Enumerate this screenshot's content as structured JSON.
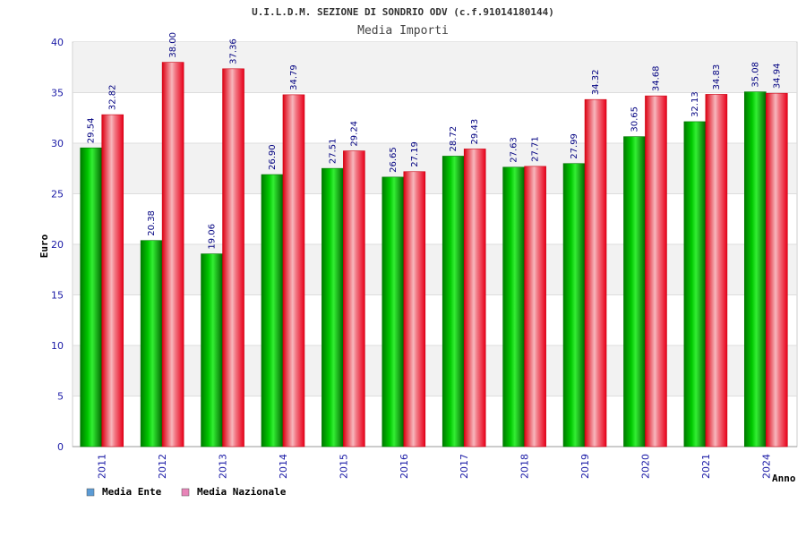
{
  "chart_data": {
    "type": "bar",
    "title": "U.I.L.D.M. SEZIONE DI SONDRIO ODV (c.f.91014180144)",
    "subtitle": "Media Importi",
    "xlabel": "Anno",
    "ylabel": "Euro",
    "ylim": [
      0,
      40
    ],
    "yticks": [
      0,
      5,
      10,
      15,
      20,
      25,
      30,
      35,
      40
    ],
    "grid": true,
    "legend_position": "bottom-left",
    "categories": [
      "2011",
      "2012",
      "2013",
      "2014",
      "2015",
      "2016",
      "2017",
      "2018",
      "2019",
      "2020",
      "2021",
      "2024"
    ],
    "series": [
      {
        "name": "Media Ente",
        "color": "#00b000",
        "legend_color": "#5b9bd5",
        "values": [
          29.54,
          20.38,
          19.06,
          26.9,
          27.51,
          26.65,
          28.72,
          27.63,
          27.99,
          30.65,
          32.13,
          35.08
        ],
        "labels": [
          "29.54",
          "20.38",
          "19.06",
          "26.90",
          "27.51",
          "26.65",
          "28.72",
          "27.63",
          "27.99",
          "30.65",
          "32.13",
          "35.08"
        ]
      },
      {
        "name": "Media Nazionale",
        "color": "#ee1122",
        "legend_color": "#e884b8",
        "values": [
          32.82,
          38.0,
          37.36,
          34.79,
          29.24,
          27.19,
          29.43,
          27.71,
          34.32,
          34.68,
          34.83,
          34.94
        ],
        "labels": [
          "32.82",
          "38.00",
          "37.36",
          "34.79",
          "29.24",
          "27.19",
          "29.43",
          "27.71",
          "34.32",
          "34.68",
          "34.83",
          "34.94"
        ]
      }
    ]
  }
}
